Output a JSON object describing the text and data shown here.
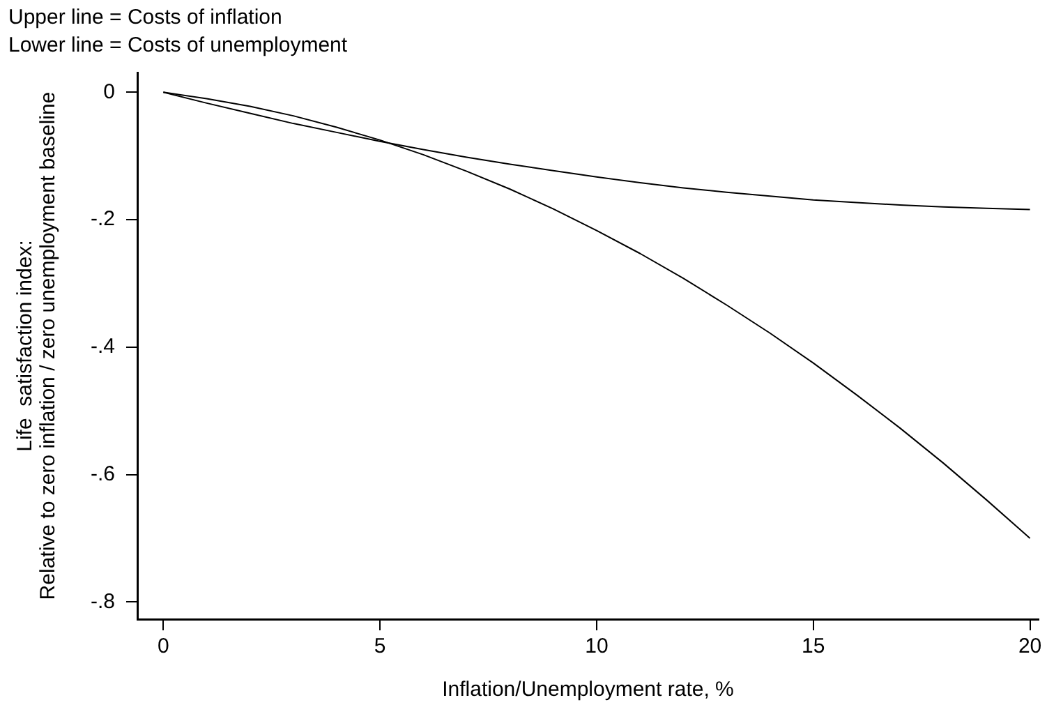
{
  "chart_data": {
    "type": "line",
    "title": "Upper line = Costs of inflation",
    "subtitle": "Lower line = Costs of unemployment",
    "xlabel": "Inflation/Unemployment rate, %",
    "ylabel": "Life  satisfaction index:\nRelative to zero inflation / zero unemployment baseline",
    "x": [
      0,
      1,
      2,
      3,
      4,
      5,
      6,
      7,
      8,
      9,
      10,
      11,
      12,
      13,
      14,
      15,
      16,
      17,
      18,
      19,
      20
    ],
    "series": [
      {
        "color": "#000000",
        "values": [
          0,
          -0.017,
          -0.033,
          -0.049,
          -0.063,
          -0.077,
          -0.09,
          -0.102,
          -0.113,
          -0.123,
          -0.133,
          -0.142,
          -0.15,
          -0.157,
          -0.163,
          -0.169,
          -0.173,
          -0.177,
          -0.18,
          -0.182,
          -0.184
        ]
      },
      {
        "color": "#000000",
        "values": [
          0,
          -0.01,
          -0.022,
          -0.037,
          -0.055,
          -0.075,
          -0.098,
          -0.124,
          -0.152,
          -0.183,
          -0.217,
          -0.253,
          -0.292,
          -0.334,
          -0.378,
          -0.425,
          -0.475,
          -0.527,
          -0.582,
          -0.64,
          -0.7
        ]
      }
    ],
    "xlim": [
      -0.6,
      20.2
    ],
    "ylim": [
      -0.827,
      0.031
    ],
    "xticks": [
      0,
      5,
      10,
      15,
      20
    ],
    "yticks": [
      0,
      {
        "value": -0.2,
        "label": "-.2"
      },
      {
        "value": -0.4,
        "label": "-.4"
      },
      {
        "value": -0.6,
        "label": "-.6"
      },
      {
        "value": -0.8,
        "label": "-.8"
      }
    ],
    "grid": false,
    "legend": false,
    "marker": "none",
    "line_style": "solid"
  }
}
